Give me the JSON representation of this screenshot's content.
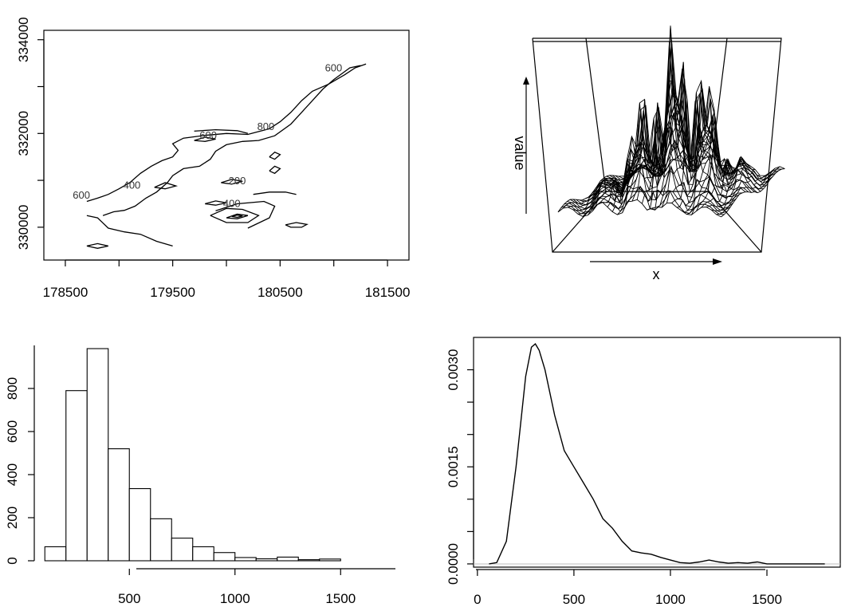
{
  "chart_data": [
    {
      "type": "contour",
      "xlim": [
        178300,
        181700
      ],
      "ylim": [
        329300,
        334200
      ],
      "x_ticks": [
        "178500",
        "179500",
        "180500",
        "181500"
      ],
      "y_ticks": [
        "330000",
        "332000",
        "334000"
      ],
      "x_ticks_minor": [
        179000,
        180000,
        181000
      ],
      "y_ticks_minor": [
        331000,
        333000
      ],
      "contour_labels": [
        {
          "text": "600",
          "x": 180998,
          "y": 333320
        },
        {
          "text": "800",
          "x": 180367,
          "y": 332070
        },
        {
          "text": "600",
          "x": 179830,
          "y": 331890
        },
        {
          "text": "400",
          "x": 179120,
          "y": 330820
        },
        {
          "text": "600",
          "x": 178650,
          "y": 330610
        },
        {
          "text": "200",
          "x": 180100,
          "y": 330920
        },
        {
          "text": "400",
          "x": 180050,
          "y": 330430
        }
      ],
      "contours": [
        [
          [
            178700,
            330550
          ],
          [
            178800,
            330620
          ],
          [
            178900,
            330700
          ],
          [
            179000,
            330820
          ],
          [
            179100,
            330950
          ],
          [
            179200,
            331150
          ],
          [
            179300,
            331300
          ],
          [
            179400,
            331420
          ],
          [
            179500,
            331500
          ],
          [
            179550,
            331640
          ],
          [
            179500,
            331780
          ],
          [
            179600,
            331900
          ],
          [
            179800,
            331960
          ],
          [
            180000,
            332000
          ],
          [
            180200,
            331980
          ],
          [
            180400,
            332100
          ],
          [
            180500,
            332250
          ],
          [
            180600,
            332450
          ],
          [
            180700,
            332700
          ],
          [
            180800,
            332900
          ],
          [
            180950,
            333050
          ],
          [
            181100,
            333250
          ],
          [
            181200,
            333400
          ],
          [
            181300,
            333480
          ]
        ],
        [
          [
            178850,
            330250
          ],
          [
            178950,
            330330
          ],
          [
            179050,
            330360
          ],
          [
            179150,
            330450
          ],
          [
            179250,
            330620
          ],
          [
            179350,
            330750
          ],
          [
            179450,
            330950
          ],
          [
            179500,
            331100
          ],
          [
            179600,
            331250
          ],
          [
            179750,
            331300
          ],
          [
            179850,
            331450
          ],
          [
            179900,
            331620
          ],
          [
            180000,
            331760
          ],
          [
            180150,
            331830
          ],
          [
            180300,
            331850
          ],
          [
            180450,
            331950
          ],
          [
            180600,
            332200
          ],
          [
            180700,
            332450
          ],
          [
            180800,
            332700
          ],
          [
            180900,
            332950
          ],
          [
            181000,
            333150
          ],
          [
            181150,
            333400
          ],
          [
            181250,
            333450
          ]
        ],
        [
          [
            178700,
            329600
          ],
          [
            178800,
            329650
          ],
          [
            178900,
            329600
          ],
          [
            178800,
            329550
          ],
          [
            178700,
            329600
          ]
        ],
        [
          [
            178700,
            330250
          ],
          [
            178800,
            330200
          ],
          [
            178900,
            329980
          ],
          [
            179050,
            329900
          ],
          [
            179200,
            329850
          ],
          [
            179350,
            329700
          ],
          [
            179500,
            329600
          ]
        ],
        [
          [
            179700,
            332050
          ],
          [
            179900,
            332080
          ],
          [
            180100,
            332060
          ],
          [
            180200,
            332000
          ]
        ],
        [
          [
            179700,
            331850
          ],
          [
            179800,
            331920
          ],
          [
            179900,
            331880
          ],
          [
            179800,
            331830
          ],
          [
            179700,
            331850
          ]
        ],
        [
          [
            179330,
            330850
          ],
          [
            179430,
            330950
          ],
          [
            179530,
            330880
          ],
          [
            179430,
            330820
          ],
          [
            179330,
            330850
          ]
        ],
        [
          [
            179950,
            330950
          ],
          [
            180050,
            331020
          ],
          [
            180150,
            330980
          ],
          [
            180050,
            330920
          ],
          [
            179950,
            330950
          ]
        ],
        [
          [
            179800,
            330500
          ],
          [
            179900,
            330560
          ],
          [
            180000,
            330520
          ],
          [
            179900,
            330470
          ],
          [
            179800,
            330500
          ]
        ],
        [
          [
            180000,
            330200
          ],
          [
            180100,
            330280
          ],
          [
            180200,
            330250
          ],
          [
            180100,
            330180
          ],
          [
            180000,
            330200
          ]
        ],
        [
          [
            179850,
            330250
          ],
          [
            180000,
            330400
          ],
          [
            180150,
            330380
          ],
          [
            180300,
            330250
          ],
          [
            180200,
            330100
          ],
          [
            180000,
            330100
          ],
          [
            179850,
            330250
          ]
        ],
        [
          [
            179900,
            330350
          ],
          [
            180100,
            330500
          ],
          [
            180350,
            330550
          ],
          [
            180450,
            330450
          ],
          [
            180400,
            330200
          ],
          [
            180200,
            329980
          ]
        ],
        [
          [
            180050,
            330230
          ],
          [
            180100,
            330260
          ],
          [
            180150,
            330240
          ],
          [
            180100,
            330210
          ],
          [
            180050,
            330230
          ]
        ],
        [
          [
            180250,
            330700
          ],
          [
            180400,
            330750
          ],
          [
            180550,
            330750
          ],
          [
            180650,
            330700
          ]
        ],
        [
          [
            180550,
            330050
          ],
          [
            180650,
            330100
          ],
          [
            180750,
            330060
          ],
          [
            180700,
            330000
          ],
          [
            180600,
            330000
          ],
          [
            180550,
            330050
          ]
        ],
        [
          [
            180400,
            331500
          ],
          [
            180450,
            331600
          ],
          [
            180500,
            331550
          ],
          [
            180450,
            331450
          ],
          [
            180400,
            331500
          ]
        ],
        [
          [
            180400,
            331200
          ],
          [
            180450,
            331300
          ],
          [
            180500,
            331250
          ],
          [
            180450,
            331150
          ],
          [
            180400,
            331200
          ]
        ]
      ]
    },
    {
      "type": "surface",
      "xlabel": "x",
      "zlabel": "value"
    },
    {
      "type": "histogram",
      "bin_edges": [
        100,
        200,
        300,
        400,
        500,
        600,
        700,
        800,
        900,
        1000,
        1100,
        1200,
        1300,
        1400,
        1500
      ],
      "counts": [
        65,
        790,
        985,
        520,
        335,
        195,
        105,
        65,
        38,
        15,
        9,
        17,
        5,
        8
      ],
      "xlim": [
        50,
        1850
      ],
      "ylim": [
        0,
        1000
      ],
      "x_ticks": [
        "500",
        "1000",
        "1500"
      ],
      "y_ticks": [
        "0",
        "200",
        "400",
        "600",
        "800"
      ]
    },
    {
      "type": "line",
      "xlim": [
        -20,
        1880
      ],
      "ylim": [
        -5e-05,
        0.0035
      ],
      "x_ticks": [
        "0",
        "500",
        "1000",
        "1500"
      ],
      "y_ticks": [
        "0.0000",
        "0.0015",
        "0.0030"
      ],
      "y_ticks_minor": [
        0.0005,
        0.001,
        0.002,
        0.0025
      ],
      "baseline": 0,
      "x": [
        60,
        100,
        150,
        200,
        250,
        280,
        300,
        320,
        350,
        400,
        450,
        500,
        550,
        600,
        650,
        700,
        750,
        800,
        850,
        900,
        950,
        1000,
        1050,
        1100,
        1150,
        1200,
        1250,
        1300,
        1350,
        1400,
        1450,
        1500,
        1550,
        1600,
        1700,
        1800
      ],
      "y": [
        0.0,
        2e-05,
        0.00035,
        0.0015,
        0.0029,
        0.00335,
        0.0034,
        0.0033,
        0.003,
        0.0023,
        0.00175,
        0.0015,
        0.00125,
        0.001,
        0.0007,
        0.00055,
        0.00035,
        0.0002,
        0.00017,
        0.00015,
        0.0001,
        6e-05,
        2e-05,
        1e-05,
        3e-05,
        6e-05,
        3e-05,
        1e-05,
        2e-05,
        1e-05,
        3e-05,
        0.0,
        0.0,
        0.0,
        0.0,
        0.0
      ]
    }
  ]
}
